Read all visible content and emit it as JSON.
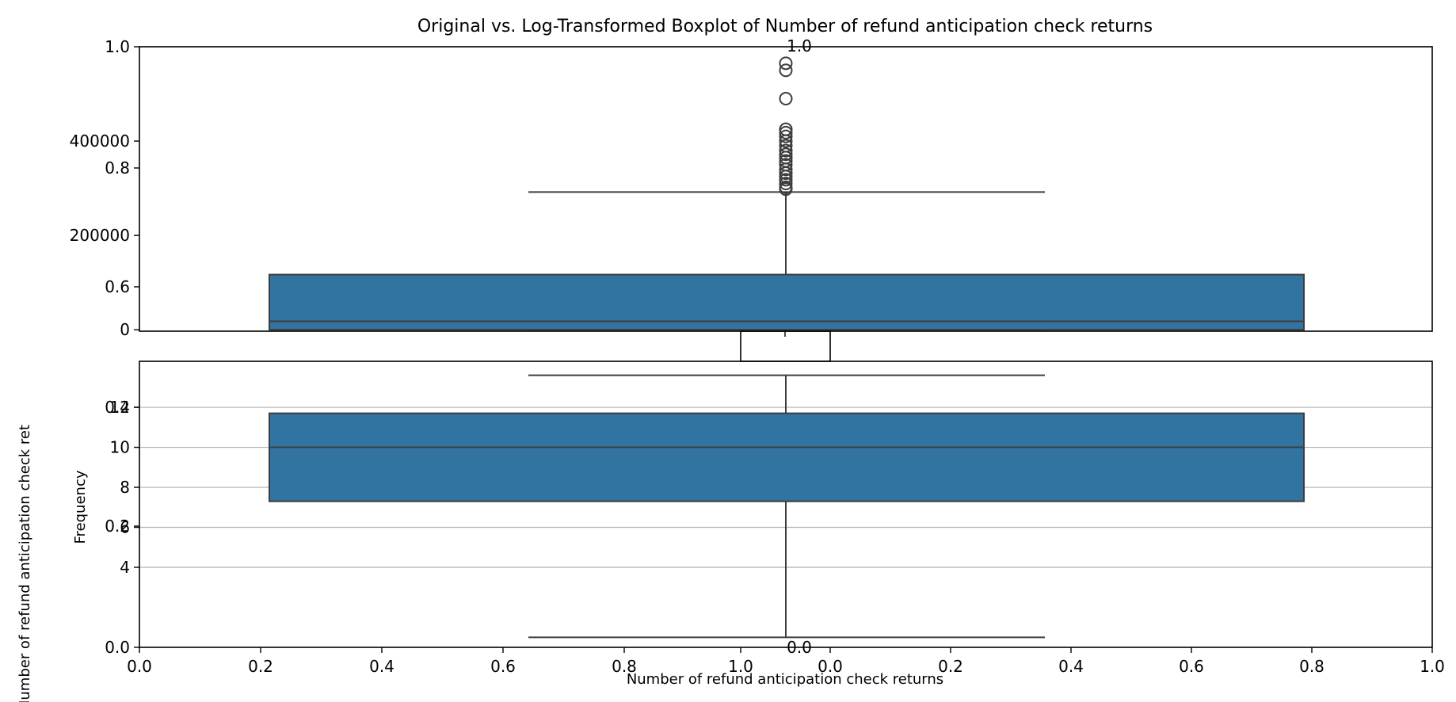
{
  "chart_data": {
    "type": "boxplot",
    "title": "Original vs. Log-Transformed Boxplot of Number of refund anticipation check returns",
    "xlabel": "Number of refund anticipation check returns",
    "ylabel": "Number of refund anticipation check ret",
    "ylabel2": "Frequency",
    "colors": {
      "box": "#3274a1",
      "edge": "#3d3d3d",
      "grid": "#b0b0b0"
    },
    "panels": [
      {
        "name": "original",
        "ylim": [
          -3000,
          600000
        ],
        "yticks": [
          0,
          200000,
          400000
        ],
        "box": {
          "whisker_low": 0,
          "q1": 0,
          "median": 18000,
          "q3": 117000,
          "whisker_high": 292000
        },
        "outliers": [
          298000,
          302000,
          310000,
          318000,
          325000,
          332000,
          340000,
          350000,
          358000,
          365000,
          372000,
          380000,
          390000,
          400000,
          410000,
          418000,
          425000,
          490000,
          550000,
          565000
        ]
      },
      {
        "name": "log",
        "ylim": [
          0,
          14.3
        ],
        "yticks": [
          4,
          6,
          8,
          10,
          12
        ],
        "grid": true,
        "box": {
          "whisker_low": 0.5,
          "q1": 7.3,
          "median": 10.0,
          "q3": 11.7,
          "whisker_high": 13.6
        },
        "outliers": []
      }
    ],
    "overlay_ticks": {
      "left_top": [
        "1.0",
        "0.8",
        "0.6"
      ],
      "left_bottom": [
        "0.4",
        "0.2",
        "0.0"
      ],
      "x_left": [
        "0.0",
        "0.2",
        "0.4",
        "0.6",
        "0.8",
        "1.0"
      ],
      "x_right": [
        "0.0",
        "0.2",
        "0.4",
        "0.6",
        "0.8",
        "1.0"
      ],
      "top_center": "1.0",
      "bottom_center": "0.0"
    }
  }
}
